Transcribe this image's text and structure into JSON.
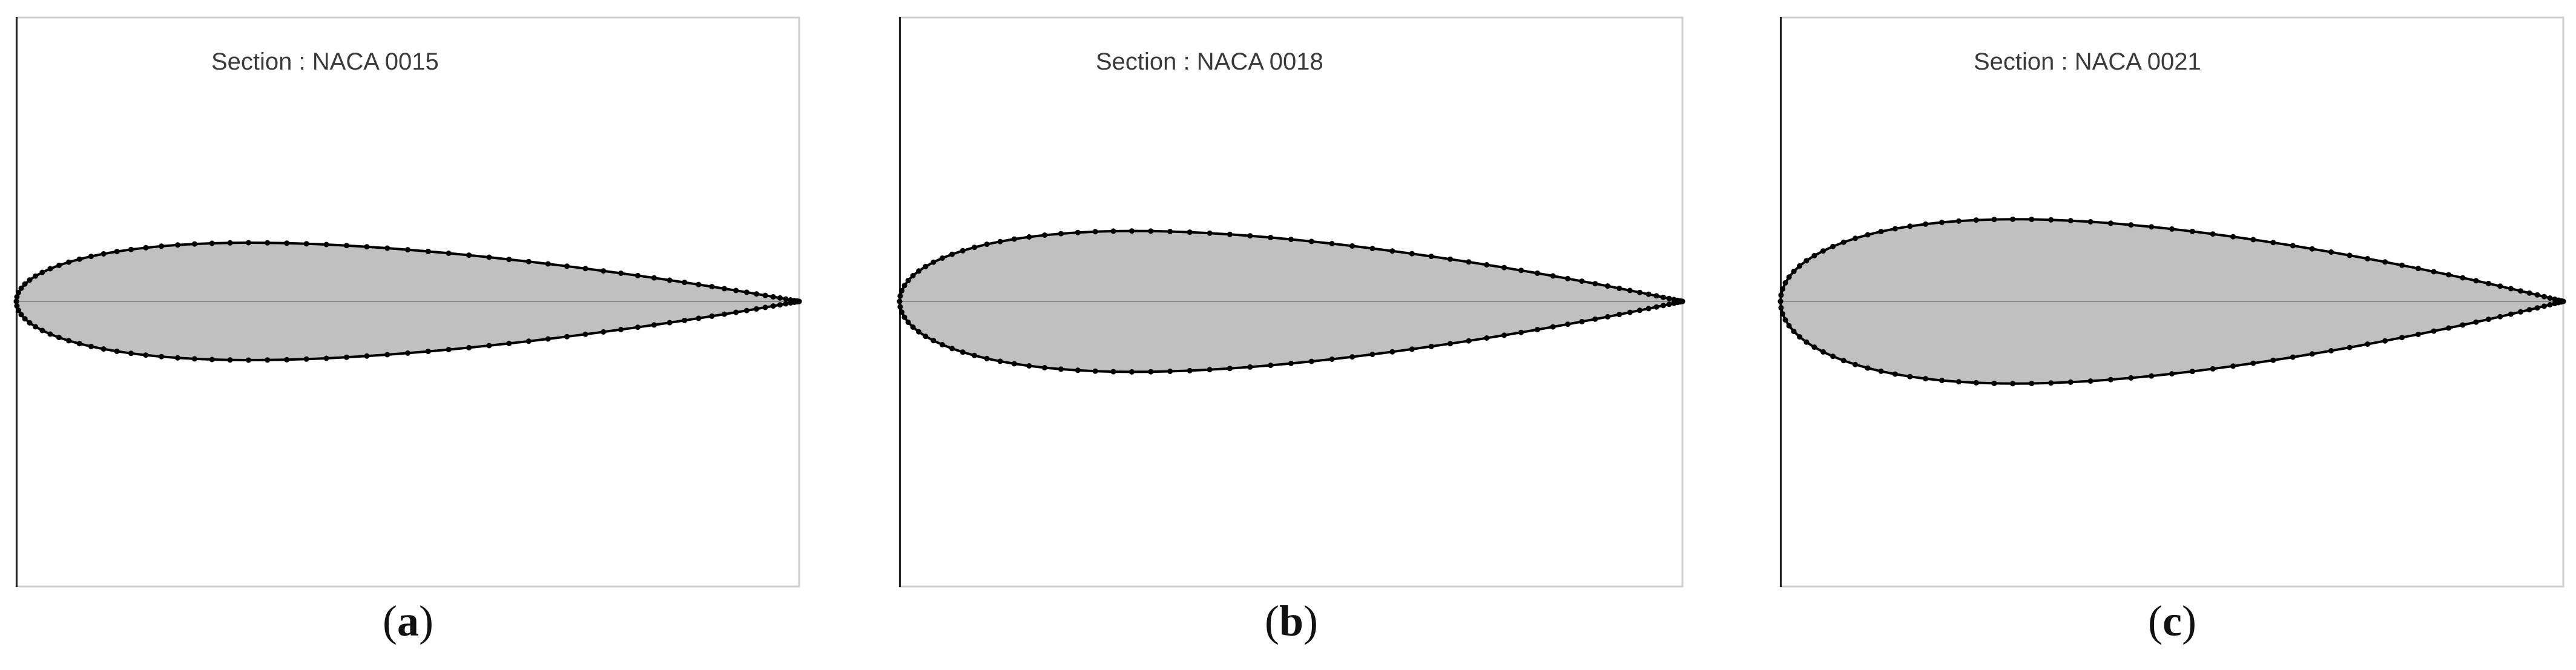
{
  "panels": [
    {
      "section_label": "Section : NACA 0015",
      "thickness": 0.15,
      "caption_letter": "a"
    },
    {
      "section_label": "Section : NACA 0018",
      "thickness": 0.18,
      "caption_letter": "b"
    },
    {
      "section_label": "Section : NACA 0021",
      "thickness": 0.21,
      "caption_letter": "c"
    }
  ],
  "colors": {
    "fill": "#c0c0c0",
    "outline": "#000000",
    "chord": "#8a8a8a",
    "frame_light": "#cfcfcf",
    "frame_dark": "#222222"
  }
}
